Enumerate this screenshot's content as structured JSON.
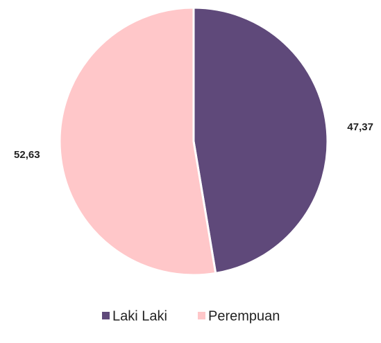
{
  "chart_data": {
    "type": "pie",
    "categories": [
      "Laki Laki",
      "Perempuan"
    ],
    "values": [
      47.37,
      52.63
    ],
    "value_labels": [
      "47,37",
      "52,63"
    ],
    "colors": [
      "#5f497a",
      "#ffc7c9"
    ],
    "legend": "bottom"
  }
}
